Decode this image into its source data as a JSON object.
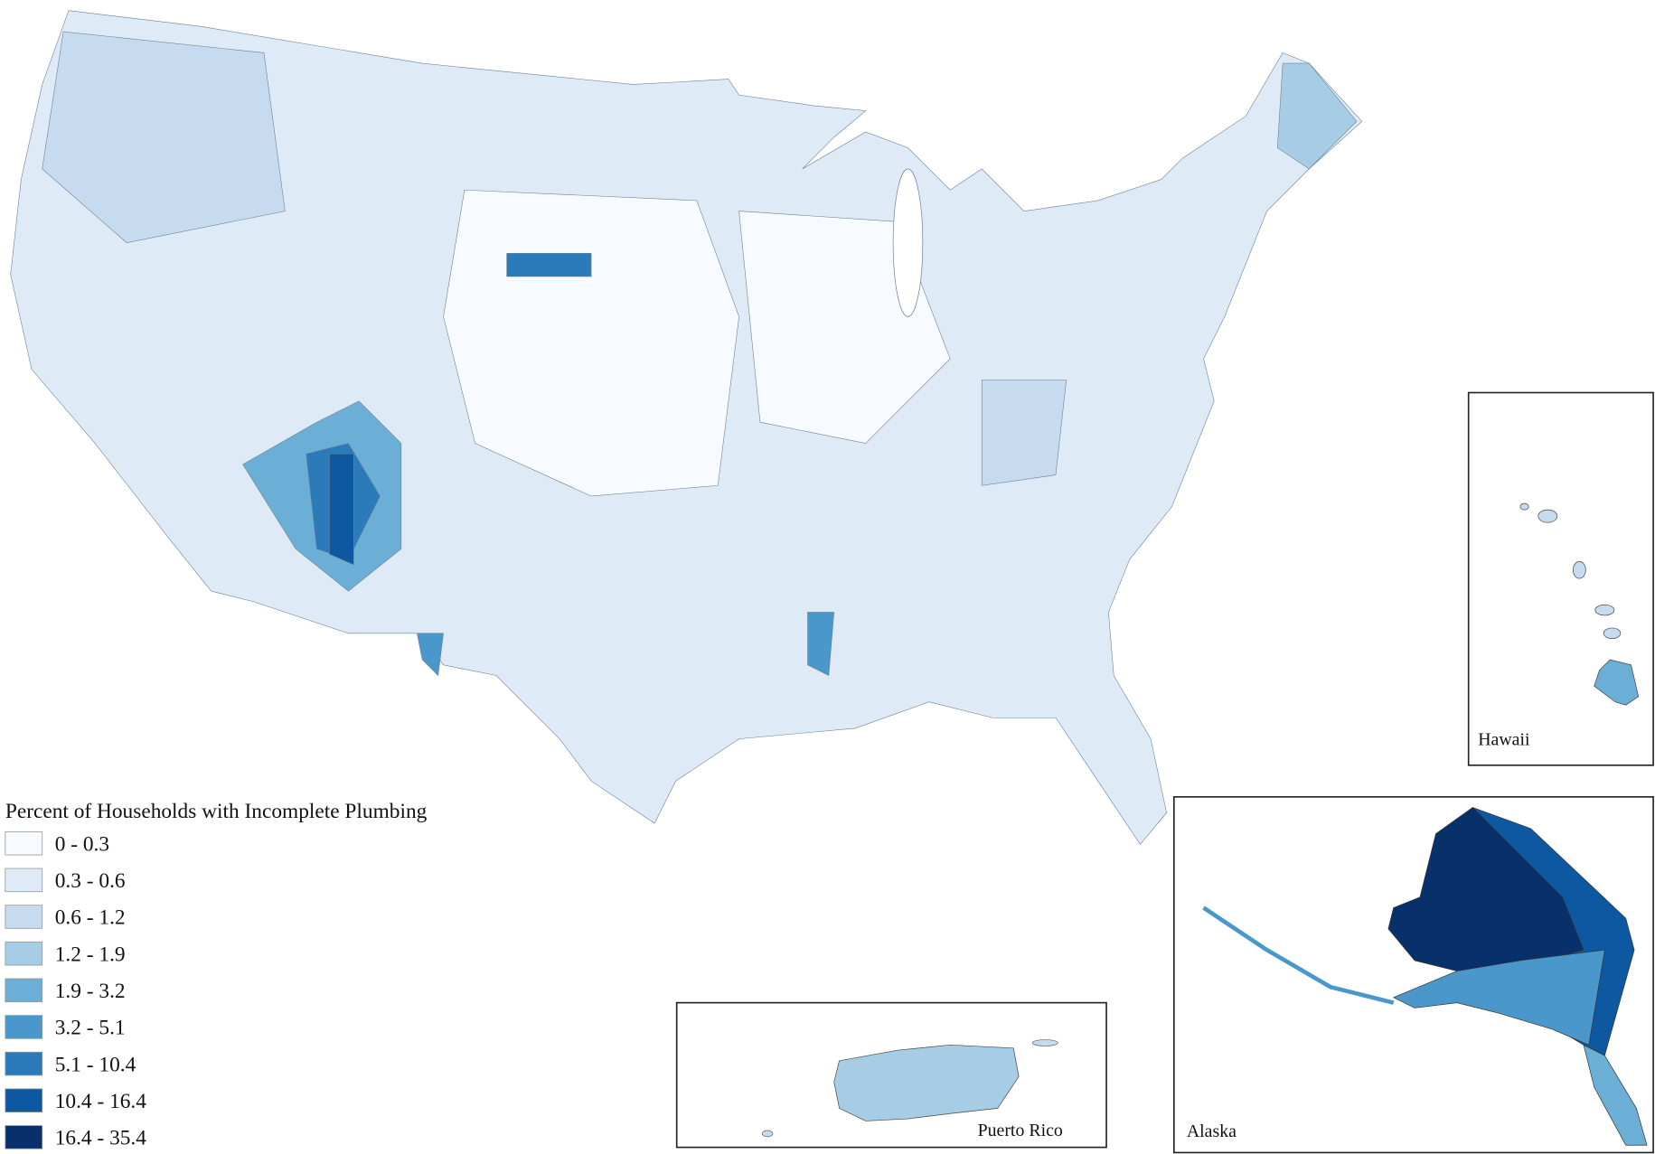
{
  "legend": {
    "title": "Percent of Households with Incomplete Plumbing",
    "items": [
      {
        "label": "0 - 0.3",
        "color": "#f7fbff"
      },
      {
        "label": "0.3 - 0.6",
        "color": "#deebf7"
      },
      {
        "label": "0.6 - 1.2",
        "color": "#c6dbef"
      },
      {
        "label": "1.2 - 1.9",
        "color": "#a6cde5"
      },
      {
        "label": "1.9 - 3.2",
        "color": "#6baed6"
      },
      {
        "label": "3.2 - 5.1",
        "color": "#4a98cb"
      },
      {
        "label": "5.1 - 10.4",
        "color": "#2b7bba"
      },
      {
        "label": "10.4 - 16.4",
        "color": "#0d58a1"
      },
      {
        "label": "16.4 - 35.4",
        "color": "#08306b"
      }
    ]
  },
  "insets": {
    "hawaii": "Hawaii",
    "puerto_rico": "Puerto Rico",
    "alaska": "Alaska"
  }
}
